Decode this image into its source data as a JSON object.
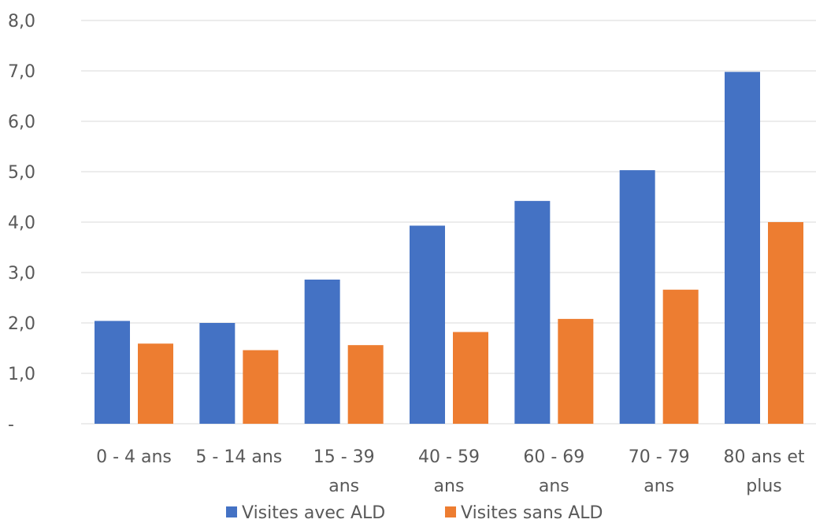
{
  "chart_data": {
    "type": "bar",
    "title": "",
    "xlabel": "",
    "ylabel": "",
    "ylim": [
      0,
      8
    ],
    "grid": true,
    "legend_position": "bottom",
    "y_ticks": [
      "-",
      "1,0",
      "2,0",
      "3,0",
      "4,0",
      "5,0",
      "6,0",
      "7,0",
      "8,0"
    ],
    "categories": [
      [
        "0 - 4 ans"
      ],
      [
        "5 - 14 ans"
      ],
      [
        "15 - 39",
        "ans"
      ],
      [
        "40 - 59",
        "ans"
      ],
      [
        "60 - 69",
        "ans"
      ],
      [
        "70 - 79",
        "ans"
      ],
      [
        "80 ans et",
        "plus"
      ]
    ],
    "series": [
      {
        "name": "Visites avec ALD",
        "color": "#4472c4",
        "values": [
          2.04,
          2.0,
          2.86,
          3.93,
          4.42,
          5.03,
          6.98
        ]
      },
      {
        "name": "Visites sans ALD",
        "color": "#ed7d31",
        "values": [
          1.59,
          1.46,
          1.56,
          1.82,
          2.08,
          2.66,
          4.0
        ]
      }
    ]
  }
}
